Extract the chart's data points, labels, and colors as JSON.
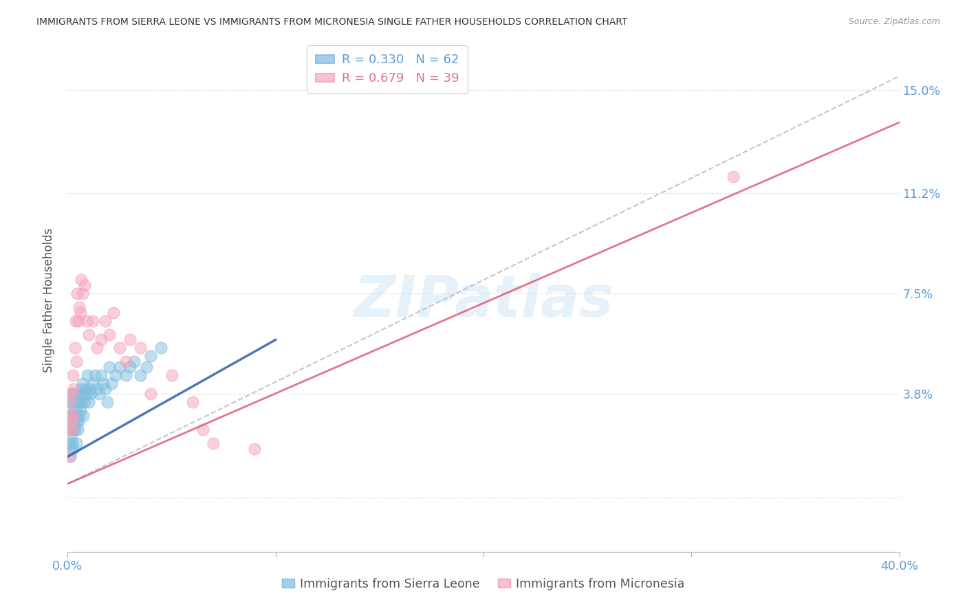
{
  "title": "IMMIGRANTS FROM SIERRA LEONE VS IMMIGRANTS FROM MICRONESIA SINGLE FATHER HOUSEHOLDS CORRELATION CHART",
  "source": "Source: ZipAtlas.com",
  "ylabel": "Single Father Households",
  "ytick_values": [
    0.0,
    3.8,
    7.5,
    11.2,
    15.0
  ],
  "ytick_labels": [
    "",
    "3.8%",
    "7.5%",
    "11.2%",
    "15.0%"
  ],
  "xlim": [
    0.0,
    40.0
  ],
  "ylim": [
    -2.0,
    16.5
  ],
  "color_sierra": "#7fbfdf",
  "color_micro": "#f4a0b8",
  "R_sierra": "0.330",
  "N_sierra": "62",
  "R_micro": "0.679",
  "N_micro": "39",
  "watermark": "ZIPatlas",
  "sierra_line_x": [
    0.0,
    10.0
  ],
  "sierra_line_y": [
    1.5,
    5.8
  ],
  "micro_line_x": [
    0.0,
    40.0
  ],
  "micro_line_y": [
    0.5,
    13.8
  ],
  "gray_dash_line_x": [
    0.0,
    40.0
  ],
  "gray_dash_line_y": [
    0.5,
    15.5
  ],
  "grid_color": "#e0e0e0",
  "title_color": "#333333",
  "label_color_blue": "#5b9bd5",
  "label_color_pink": "#e07090",
  "legend_label_sl": "R = 0.330   N = 62",
  "legend_label_mc": "R = 0.679   N = 39",
  "bottom_legend_sl": "Immigrants from Sierra Leone",
  "bottom_legend_mc": "Immigrants from Micronesia",
  "sierra_leone_x": [
    0.05,
    0.07,
    0.08,
    0.1,
    0.1,
    0.12,
    0.13,
    0.15,
    0.15,
    0.17,
    0.18,
    0.2,
    0.22,
    0.25,
    0.25,
    0.28,
    0.3,
    0.3,
    0.32,
    0.35,
    0.38,
    0.4,
    0.4,
    0.42,
    0.45,
    0.48,
    0.5,
    0.52,
    0.55,
    0.6,
    0.62,
    0.65,
    0.68,
    0.7,
    0.72,
    0.75,
    0.8,
    0.85,
    0.9,
    0.95,
    1.0,
    1.05,
    1.1,
    1.2,
    1.3,
    1.4,
    1.5,
    1.6,
    1.7,
    1.8,
    1.9,
    2.0,
    2.1,
    2.3,
    2.5,
    2.8,
    3.0,
    3.2,
    3.5,
    3.8,
    4.0,
    4.5
  ],
  "sierra_leone_y": [
    2.5,
    1.8,
    3.2,
    2.0,
    3.5,
    2.8,
    1.5,
    3.0,
    2.2,
    3.8,
    2.5,
    3.0,
    2.0,
    3.5,
    1.8,
    2.8,
    2.5,
    3.8,
    3.0,
    2.5,
    3.2,
    2.8,
    3.5,
    2.0,
    3.0,
    2.5,
    3.5,
    2.8,
    3.0,
    3.8,
    3.2,
    4.0,
    3.5,
    3.8,
    4.2,
    3.0,
    3.5,
    4.0,
    3.8,
    4.5,
    3.5,
    4.0,
    3.8,
    4.2,
    4.5,
    4.0,
    3.8,
    4.5,
    4.2,
    4.0,
    3.5,
    4.8,
    4.2,
    4.5,
    4.8,
    4.5,
    4.8,
    5.0,
    4.5,
    4.8,
    5.2,
    5.5
  ],
  "micronesia_x": [
    0.08,
    0.1,
    0.12,
    0.15,
    0.18,
    0.2,
    0.22,
    0.25,
    0.28,
    0.3,
    0.35,
    0.38,
    0.4,
    0.45,
    0.5,
    0.55,
    0.6,
    0.65,
    0.7,
    0.8,
    0.9,
    1.0,
    1.2,
    1.4,
    1.6,
    1.8,
    2.0,
    2.2,
    2.5,
    2.8,
    3.0,
    3.5,
    4.0,
    5.0,
    6.0,
    7.0,
    9.0,
    32.0,
    6.5
  ],
  "micronesia_y": [
    1.5,
    2.5,
    3.0,
    3.5,
    2.8,
    3.8,
    2.5,
    4.5,
    3.0,
    4.0,
    5.5,
    6.5,
    5.0,
    7.5,
    6.5,
    7.0,
    6.8,
    8.0,
    7.5,
    7.8,
    6.5,
    6.0,
    6.5,
    5.5,
    5.8,
    6.5,
    6.0,
    6.8,
    5.5,
    5.0,
    5.8,
    5.5,
    3.8,
    4.5,
    3.5,
    2.0,
    1.8,
    11.8,
    2.5
  ]
}
